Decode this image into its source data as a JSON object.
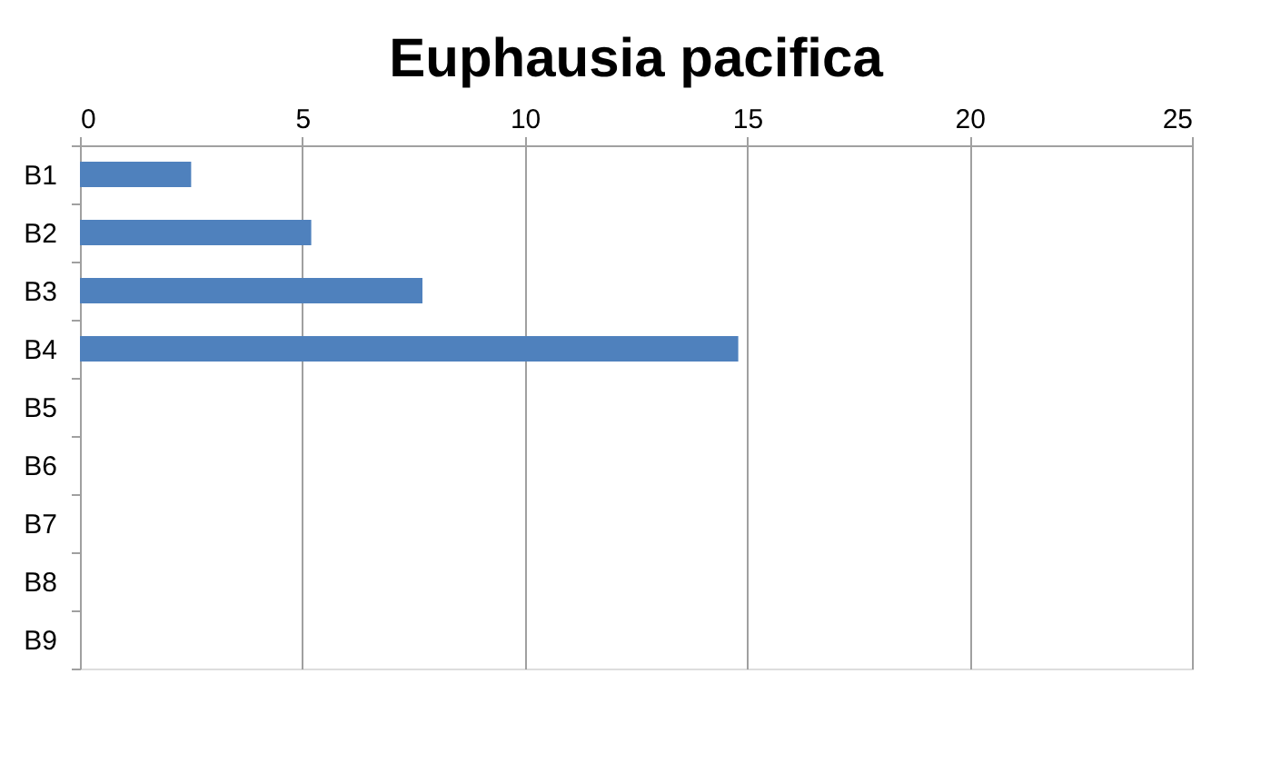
{
  "chart_data": {
    "type": "bar",
    "orientation": "horizontal",
    "title": "Euphausia pacifica",
    "categories": [
      "B1",
      "B2",
      "B3",
      "B4",
      "B5",
      "B6",
      "B7",
      "B8",
      "B9"
    ],
    "series": [
      {
        "color": "#4f81bd",
        "values": [
          2.5,
          5.2,
          7.7,
          14.8,
          null,
          null,
          null,
          null,
          null
        ]
      }
    ],
    "xlim": [
      0,
      25
    ],
    "xticks": [
      0,
      5,
      10,
      15,
      20,
      25
    ],
    "grid": "x"
  }
}
